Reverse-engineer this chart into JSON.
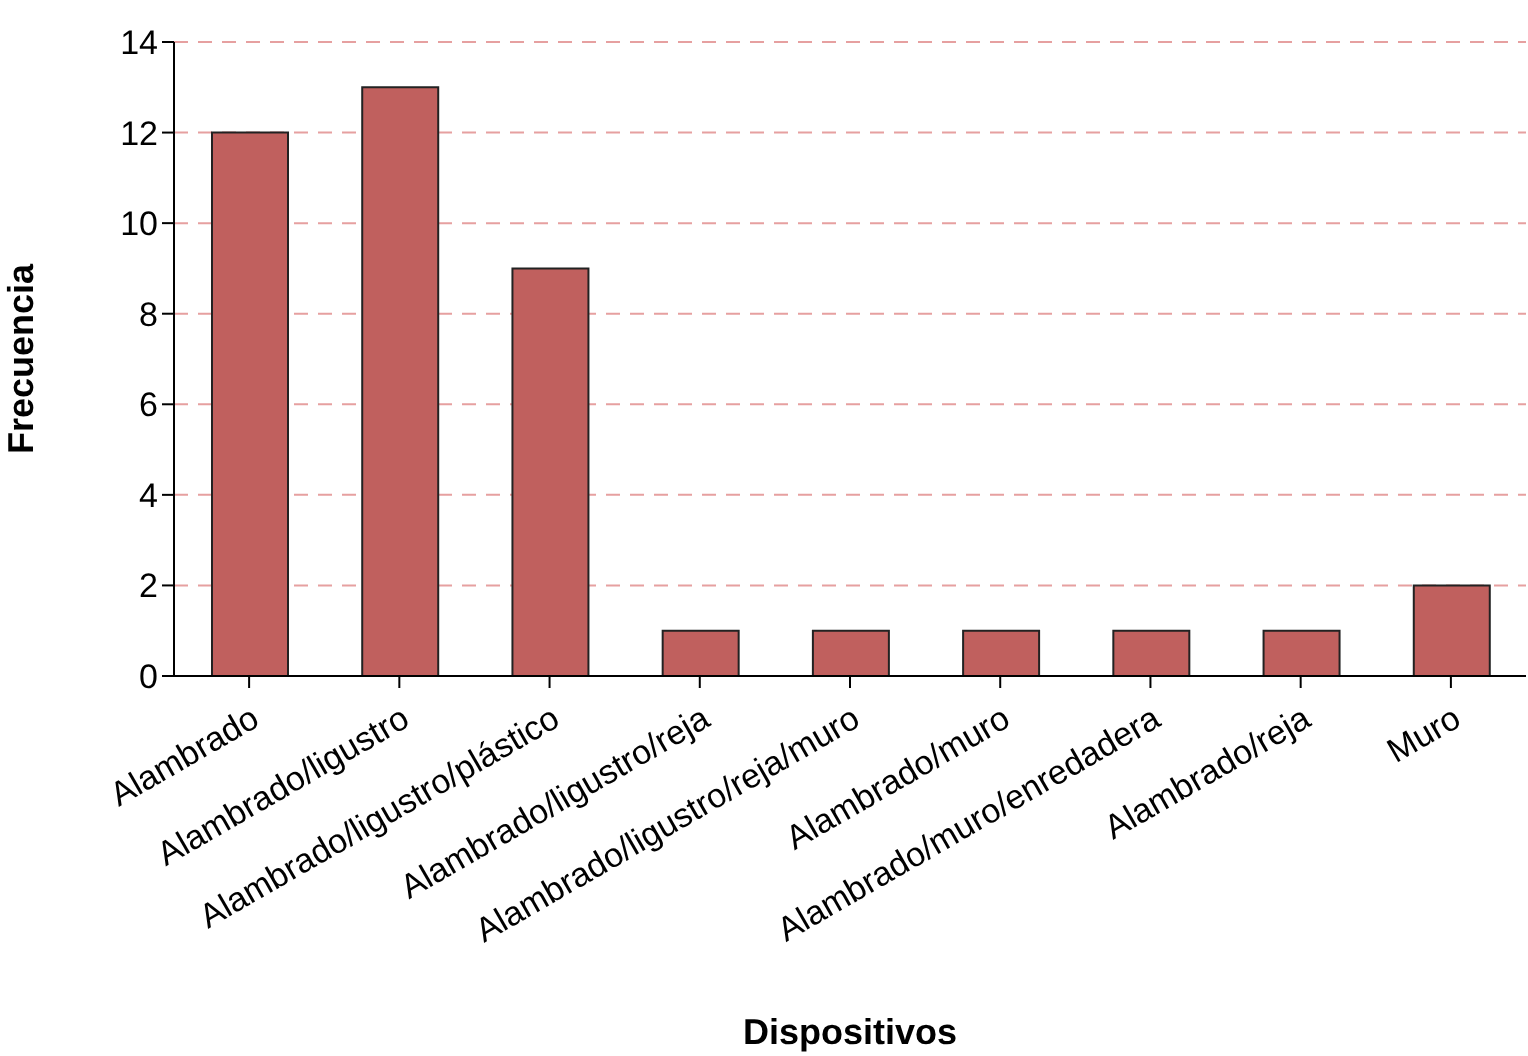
{
  "chart_data": {
    "type": "bar",
    "xlabel": "Dispositivos",
    "ylabel": "Frecuencia",
    "categories": [
      "Alambrado",
      "Alambrado/ligustro",
      "Alambrado/ligustro/plástico",
      "Alambrado/ligustro/reja",
      "Alambrado/ligustro/reja/muro",
      "Alambrado/muro",
      "Alambrado/muro/enredadera",
      "Alambrado/reja",
      "Muro"
    ],
    "values": [
      12,
      13,
      9,
      1,
      1,
      1,
      1,
      1,
      2
    ],
    "color": "#c0605e",
    "ylim": [
      0,
      14
    ],
    "yticks": [
      0,
      2,
      4,
      6,
      8,
      10,
      12,
      14
    ],
    "grid": "y"
  }
}
